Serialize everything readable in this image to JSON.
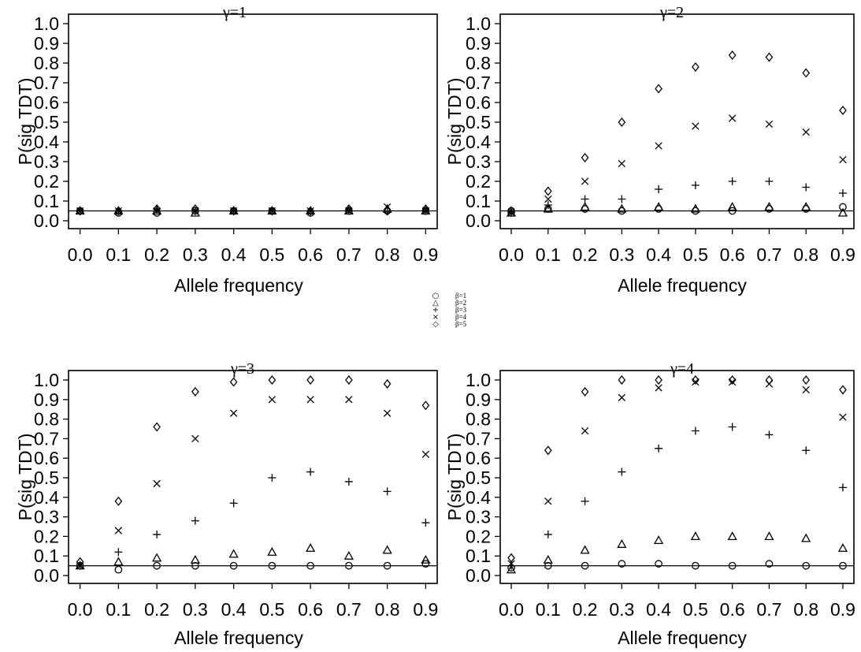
{
  "chart_data": {
    "type": "scatter",
    "shared": {
      "xlabel": "Allele frequency",
      "ylabel": "P(sig TDT)",
      "xticks": [
        0.0,
        0.1,
        0.2,
        0.3,
        0.4,
        0.5,
        0.6,
        0.7,
        0.8,
        0.9
      ],
      "xtick_labels": [
        "0.0",
        "0.1",
        "0.2",
        "0.3",
        "0.4",
        "0.5",
        "0.6",
        "0.7",
        "0.8",
        "0.9"
      ],
      "yticks": [
        0.0,
        0.1,
        0.2,
        0.3,
        0.4,
        0.5,
        0.6,
        0.7,
        0.8,
        0.9,
        1.0
      ],
      "ytick_labels": [
        "0.0",
        "0.1",
        "0.2",
        "0.3",
        "0.4",
        "0.5",
        "0.6",
        "0.7",
        "0.8",
        "0.9",
        "1.0"
      ],
      "ylim": [
        0.0,
        1.0
      ],
      "xlim": [
        -0.03,
        0.93
      ],
      "reference_line": 0.05
    },
    "legend": {
      "placement": "center",
      "entries": [
        {
          "label": "β=1",
          "marker": "circle"
        },
        {
          "label": "β=2",
          "marker": "triangle"
        },
        {
          "label": "β=3",
          "marker": "plus"
        },
        {
          "label": "β=4",
          "marker": "cross"
        },
        {
          "label": "β=5",
          "marker": "diamond"
        }
      ]
    },
    "panels": [
      {
        "title": "γ=1",
        "series": [
          {
            "marker": "circle",
            "values": [
              0.05,
              0.04,
              0.04,
              0.05,
              0.05,
              0.05,
              0.04,
              0.05,
              0.05,
              0.05
            ]
          },
          {
            "marker": "triangle",
            "values": [
              0.05,
              0.05,
              0.05,
              0.04,
              0.05,
              0.05,
              0.05,
              0.05,
              0.06,
              0.05
            ]
          },
          {
            "marker": "plus",
            "values": [
              0.05,
              0.05,
              0.06,
              0.05,
              0.05,
              0.05,
              0.05,
              0.05,
              0.05,
              0.05
            ]
          },
          {
            "marker": "cross",
            "values": [
              0.05,
              0.05,
              0.05,
              0.05,
              0.05,
              0.05,
              0.05,
              0.05,
              0.07,
              0.05
            ]
          },
          {
            "marker": "diamond",
            "values": [
              0.05,
              0.05,
              0.06,
              0.06,
              0.05,
              0.05,
              0.05,
              0.06,
              0.05,
              0.06
            ]
          }
        ]
      },
      {
        "title": "γ=2",
        "series": [
          {
            "marker": "circle",
            "values": [
              0.05,
              0.06,
              0.06,
              0.05,
              0.06,
              0.05,
              0.05,
              0.06,
              0.06,
              0.07
            ]
          },
          {
            "marker": "triangle",
            "values": [
              0.04,
              0.06,
              0.07,
              0.06,
              0.07,
              0.06,
              0.07,
              0.07,
              0.07,
              0.04
            ]
          },
          {
            "marker": "plus",
            "values": [
              0.04,
              0.08,
              0.11,
              0.11,
              0.16,
              0.18,
              0.2,
              0.2,
              0.17,
              0.14
            ]
          },
          {
            "marker": "cross",
            "values": [
              0.04,
              0.11,
              0.2,
              0.29,
              0.38,
              0.48,
              0.52,
              0.49,
              0.45,
              0.31
            ]
          },
          {
            "marker": "diamond",
            "values": [
              0.05,
              0.15,
              0.32,
              0.5,
              0.67,
              0.78,
              0.84,
              0.83,
              0.75,
              0.56
            ]
          }
        ]
      },
      {
        "title": "γ=3",
        "series": [
          {
            "marker": "circle",
            "values": [
              0.05,
              0.03,
              0.05,
              0.05,
              0.05,
              0.05,
              0.05,
              0.05,
              0.05,
              0.06
            ]
          },
          {
            "marker": "triangle",
            "values": [
              0.05,
              0.07,
              0.09,
              0.08,
              0.11,
              0.12,
              0.14,
              0.1,
              0.13,
              0.08
            ]
          },
          {
            "marker": "plus",
            "values": [
              0.05,
              0.12,
              0.21,
              0.28,
              0.37,
              0.5,
              0.53,
              0.48,
              0.43,
              0.27
            ]
          },
          {
            "marker": "cross",
            "values": [
              0.05,
              0.23,
              0.47,
              0.7,
              0.83,
              0.9,
              0.9,
              0.9,
              0.83,
              0.62
            ]
          },
          {
            "marker": "diamond",
            "values": [
              0.07,
              0.38,
              0.76,
              0.94,
              0.99,
              1.0,
              1.0,
              1.0,
              0.98,
              0.87
            ]
          }
        ]
      },
      {
        "title": "γ=4",
        "series": [
          {
            "marker": "circle",
            "values": [
              0.04,
              0.05,
              0.05,
              0.06,
              0.06,
              0.05,
              0.05,
              0.06,
              0.05,
              0.05
            ]
          },
          {
            "marker": "triangle",
            "values": [
              0.03,
              0.08,
              0.13,
              0.16,
              0.18,
              0.2,
              0.2,
              0.2,
              0.19,
              0.14
            ]
          },
          {
            "marker": "plus",
            "values": [
              0.05,
              0.21,
              0.38,
              0.53,
              0.65,
              0.74,
              0.76,
              0.72,
              0.64,
              0.45
            ]
          },
          {
            "marker": "cross",
            "values": [
              0.06,
              0.38,
              0.74,
              0.91,
              0.96,
              0.99,
              0.99,
              0.98,
              0.95,
              0.81
            ]
          },
          {
            "marker": "diamond",
            "values": [
              0.09,
              0.64,
              0.94,
              1.0,
              1.0,
              1.0,
              1.0,
              1.0,
              1.0,
              0.95
            ]
          }
        ]
      }
    ]
  }
}
